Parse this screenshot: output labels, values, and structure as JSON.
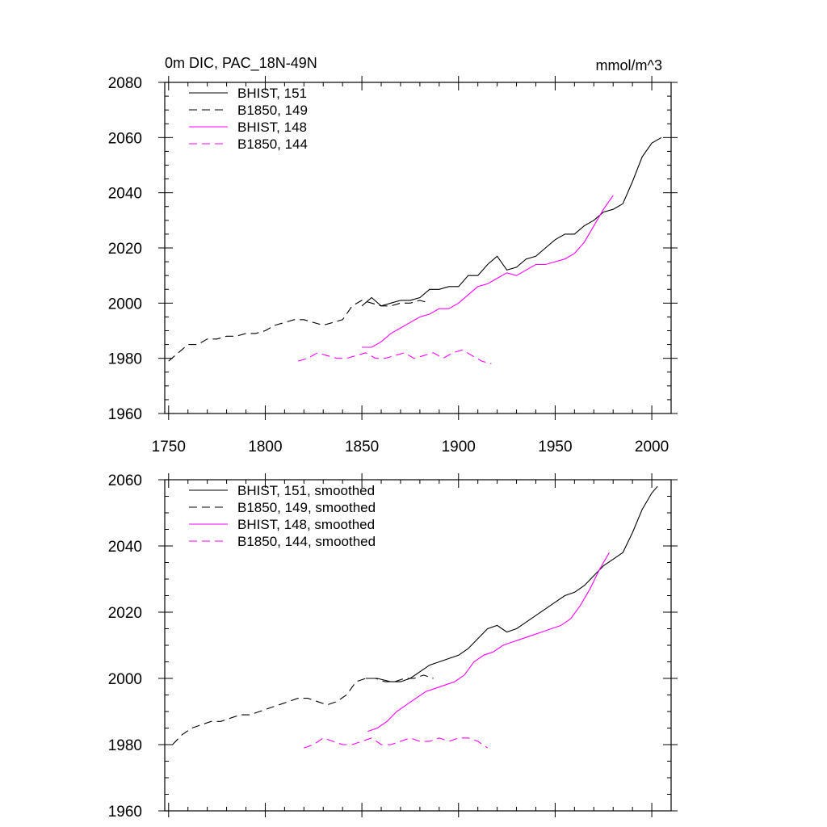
{
  "chart_data": [
    {
      "type": "line",
      "title": "0m DIC, PAC_18N-49N",
      "units": "mmol/m^3",
      "xlim": [
        1748,
        2010
      ],
      "ylim": [
        1960,
        2080
      ],
      "xticks": [
        1750,
        1800,
        1850,
        1900,
        1950,
        2000
      ],
      "xtick_labels": [
        "1750",
        "1800",
        "1850",
        "1900",
        "1950",
        "2000"
      ],
      "yticks": [
        1960,
        1980,
        2000,
        2020,
        2040,
        2060,
        2080
      ],
      "ytick_labels": [
        "1960",
        "1980",
        "2000",
        "2020",
        "2040",
        "2060",
        "2080"
      ],
      "legend_position": "top-left",
      "series": [
        {
          "name": "BHIST, 151",
          "color": "#000000",
          "dash": "solid",
          "x": [
            1850,
            1855,
            1860,
            1865,
            1870,
            1875,
            1880,
            1885,
            1890,
            1895,
            1900,
            1905,
            1910,
            1915,
            1920,
            1925,
            1930,
            1935,
            1940,
            1945,
            1950,
            1955,
            1960,
            1965,
            1970,
            1975,
            1980,
            1985,
            1990,
            1995,
            2000,
            2005
          ],
          "y": [
            1999,
            2002,
            1999,
            2000,
            2001,
            2001,
            2002,
            2005,
            2005,
            2006,
            2006,
            2010,
            2010,
            2014,
            2017,
            2012,
            2013,
            2016,
            2017,
            2020,
            2023,
            2025,
            2025,
            2028,
            2030,
            2033,
            2034,
            2036,
            2044,
            2053,
            2058,
            2060
          ]
        },
        {
          "name": "B1850, 149",
          "color": "#000000",
          "dash": "dashed",
          "x": [
            1750,
            1755,
            1760,
            1765,
            1770,
            1775,
            1780,
            1785,
            1790,
            1795,
            1800,
            1805,
            1810,
            1815,
            1820,
            1825,
            1830,
            1835,
            1840,
            1845,
            1850,
            1855,
            1860,
            1865,
            1870,
            1875,
            1880,
            1885
          ],
          "y": [
            1979,
            1982,
            1985,
            1985,
            1987,
            1987,
            1988,
            1988,
            1989,
            1989,
            1990,
            1992,
            1993,
            1994,
            1994,
            1993,
            1992,
            1993,
            1994,
            1999,
            2001,
            2000,
            1999,
            1999,
            2000,
            2000,
            2001,
            2000
          ]
        },
        {
          "name": "BHIST, 148",
          "color": "#ff00ff",
          "dash": "solid",
          "x": [
            1850,
            1855,
            1860,
            1865,
            1870,
            1875,
            1880,
            1885,
            1890,
            1895,
            1900,
            1905,
            1910,
            1915,
            1920,
            1925,
            1930,
            1935,
            1940,
            1945,
            1950,
            1955,
            1960,
            1965,
            1970,
            1975,
            1980
          ],
          "y": [
            1984,
            1984,
            1986,
            1989,
            1991,
            1993,
            1995,
            1996,
            1998,
            1998,
            2000,
            2003,
            2006,
            2007,
            2009,
            2011,
            2010,
            2012,
            2014,
            2014,
            2015,
            2016,
            2018,
            2022,
            2028,
            2034,
            2039
          ]
        },
        {
          "name": "B1850, 144",
          "color": "#ff00ff",
          "dash": "dashed",
          "x": [
            1817,
            1822,
            1827,
            1832,
            1837,
            1842,
            1847,
            1852,
            1857,
            1862,
            1867,
            1872,
            1877,
            1882,
            1887,
            1892,
            1897,
            1902,
            1907,
            1912,
            1917
          ],
          "y": [
            1979,
            1980,
            1982,
            1981,
            1980,
            1980,
            1981,
            1982,
            1980,
            1980,
            1981,
            1982,
            1980,
            1981,
            1982,
            1980,
            1982,
            1983,
            1981,
            1979,
            1978
          ]
        }
      ]
    },
    {
      "type": "line",
      "xlim": [
        1748,
        2010
      ],
      "ylim": [
        1960,
        2060
      ],
      "xticks": [
        1750,
        1800,
        1850,
        1900,
        1950,
        2000
      ],
      "yticks": [
        1960,
        1980,
        2000,
        2020,
        2040,
        2060
      ],
      "ytick_labels": [
        "1960",
        "1980",
        "2000",
        "2020",
        "2040",
        "2060"
      ],
      "legend_position": "top-left",
      "series": [
        {
          "name": "BHIST, 151, smoothed",
          "color": "#000000",
          "dash": "solid",
          "x": [
            1852,
            1858,
            1865,
            1870,
            1875,
            1880,
            1885,
            1890,
            1895,
            1900,
            1905,
            1910,
            1915,
            1920,
            1925,
            1930,
            1935,
            1940,
            1945,
            1950,
            1955,
            1960,
            1965,
            1970,
            1975,
            1980,
            1985,
            1990,
            1995,
            2000,
            2003
          ],
          "y": [
            2000,
            2000,
            1999,
            1999,
            2000,
            2002,
            2004,
            2005,
            2006,
            2007,
            2009,
            2012,
            2015,
            2016,
            2014,
            2015,
            2017,
            2019,
            2021,
            2023,
            2025,
            2026,
            2028,
            2031,
            2034,
            2036,
            2038,
            2044,
            2051,
            2056,
            2058
          ]
        },
        {
          "name": "B1850, 149, smoothed",
          "color": "#000000",
          "dash": "dashed",
          "x": [
            1752,
            1757,
            1762,
            1767,
            1772,
            1777,
            1782,
            1787,
            1792,
            1797,
            1802,
            1807,
            1812,
            1817,
            1822,
            1827,
            1832,
            1837,
            1842,
            1847,
            1852,
            1857,
            1862,
            1867,
            1872,
            1877,
            1882,
            1887
          ],
          "y": [
            1980,
            1983,
            1985,
            1986,
            1987,
            1987,
            1988,
            1989,
            1989,
            1990,
            1991,
            1992,
            1993,
            1994,
            1994,
            1993,
            1992,
            1993,
            1995,
            1999,
            2000,
            2000,
            1999,
            1999,
            2000,
            2000,
            2001,
            2000
          ]
        },
        {
          "name": "BHIST, 148, smoothed",
          "color": "#ff00ff",
          "dash": "solid",
          "x": [
            1853,
            1858,
            1863,
            1868,
            1873,
            1878,
            1883,
            1888,
            1893,
            1898,
            1903,
            1908,
            1913,
            1918,
            1923,
            1928,
            1933,
            1938,
            1943,
            1948,
            1953,
            1958,
            1963,
            1968,
            1973,
            1978
          ],
          "y": [
            1984,
            1985,
            1987,
            1990,
            1992,
            1994,
            1996,
            1997,
            1998,
            1999,
            2001,
            2005,
            2007,
            2008,
            2010,
            2011,
            2012,
            2013,
            2014,
            2015,
            2016,
            2018,
            2022,
            2027,
            2033,
            2038
          ]
        },
        {
          "name": "B1850, 144, smoothed",
          "color": "#ff00ff",
          "dash": "dashed",
          "x": [
            1820,
            1825,
            1830,
            1835,
            1840,
            1845,
            1850,
            1855,
            1860,
            1865,
            1870,
            1875,
            1880,
            1885,
            1890,
            1895,
            1900,
            1905,
            1910,
            1915
          ],
          "y": [
            1979,
            1980,
            1982,
            1981,
            1980,
            1980,
            1981,
            1982,
            1980,
            1980,
            1981,
            1982,
            1981,
            1981,
            1982,
            1981,
            1982,
            1982,
            1981,
            1979
          ]
        }
      ]
    }
  ]
}
